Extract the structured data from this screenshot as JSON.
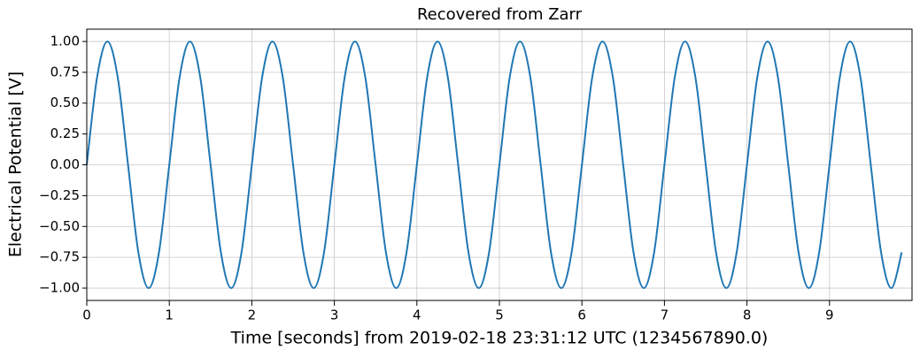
{
  "chart_data": {
    "type": "line",
    "title": "Recovered from Zarr",
    "xlabel": "Time [seconds] from 2019-02-18 23:31:12 UTC (1234567890.0)",
    "ylabel": "Electrical Potential [V]",
    "x": [
      0,
      0.125,
      0.25,
      0.375,
      0.5,
      0.625,
      0.75,
      0.875,
      1,
      1.125,
      1.25,
      1.375,
      1.5,
      1.625,
      1.75,
      1.875,
      2,
      2.125,
      2.25,
      2.375,
      2.5,
      2.625,
      2.75,
      2.875,
      3,
      3.125,
      3.25,
      3.375,
      3.5,
      3.625,
      3.75,
      3.875,
      4,
      4.125,
      4.25,
      4.375,
      4.5,
      4.625,
      4.75,
      4.875,
      5,
      5.125,
      5.25,
      5.375,
      5.5,
      5.625,
      5.75,
      5.875,
      6,
      6.125,
      6.25,
      6.375,
      6.5,
      6.625,
      6.75,
      6.875,
      7,
      7.125,
      7.25,
      7.375,
      7.5,
      7.625,
      7.75,
      7.875,
      8,
      8.125,
      8.25,
      8.375,
      8.5,
      8.625,
      8.75,
      8.875,
      9,
      9.125,
      9.25,
      9.375,
      9.5,
      9.625,
      9.75,
      9.875
    ],
    "series": [
      {
        "color": "#1f77b4",
        "values": [
          0,
          0.71,
          1,
          0.71,
          0,
          -0.71,
          -1,
          -0.71,
          0,
          0.71,
          1,
          0.71,
          0,
          -0.71,
          -1,
          -0.71,
          0,
          0.71,
          1,
          0.71,
          0,
          -0.71,
          -1,
          -0.71,
          0,
          0.71,
          1,
          0.71,
          0,
          -0.71,
          -1,
          -0.71,
          0,
          0.71,
          1,
          0.71,
          0,
          -0.71,
          -1,
          -0.71,
          0,
          0.71,
          1,
          0.71,
          0,
          -0.71,
          -1,
          -0.71,
          0,
          0.71,
          1,
          0.71,
          0,
          -0.71,
          -1,
          -0.71,
          0,
          0.71,
          1,
          0.71,
          0,
          -0.71,
          -1,
          -0.71,
          0,
          0.71,
          1,
          0.71,
          0,
          -0.71,
          -1,
          -0.71,
          0,
          0.71,
          1,
          0.71,
          0,
          -0.71,
          -1,
          -0.71
        ]
      }
    ],
    "xlim": [
      0,
      10
    ],
    "xticks": [
      0,
      1,
      2,
      3,
      4,
      5,
      6,
      7,
      8,
      9
    ],
    "ylim": [
      -1.1,
      1.1
    ],
    "yticks": [
      {
        "value": -1,
        "label": "−1.00"
      },
      {
        "value": -0.75,
        "label": "−0.75"
      },
      {
        "value": -0.5,
        "label": "−0.50"
      },
      {
        "value": -0.25,
        "label": "−0.25"
      },
      {
        "value": 0,
        "label": "0.00"
      },
      {
        "value": 0.25,
        "label": "0.25"
      },
      {
        "value": 0.5,
        "label": "0.50"
      },
      {
        "value": 0.75,
        "label": "0.75"
      },
      {
        "value": 1,
        "label": "1.00"
      }
    ],
    "grid": true
  }
}
